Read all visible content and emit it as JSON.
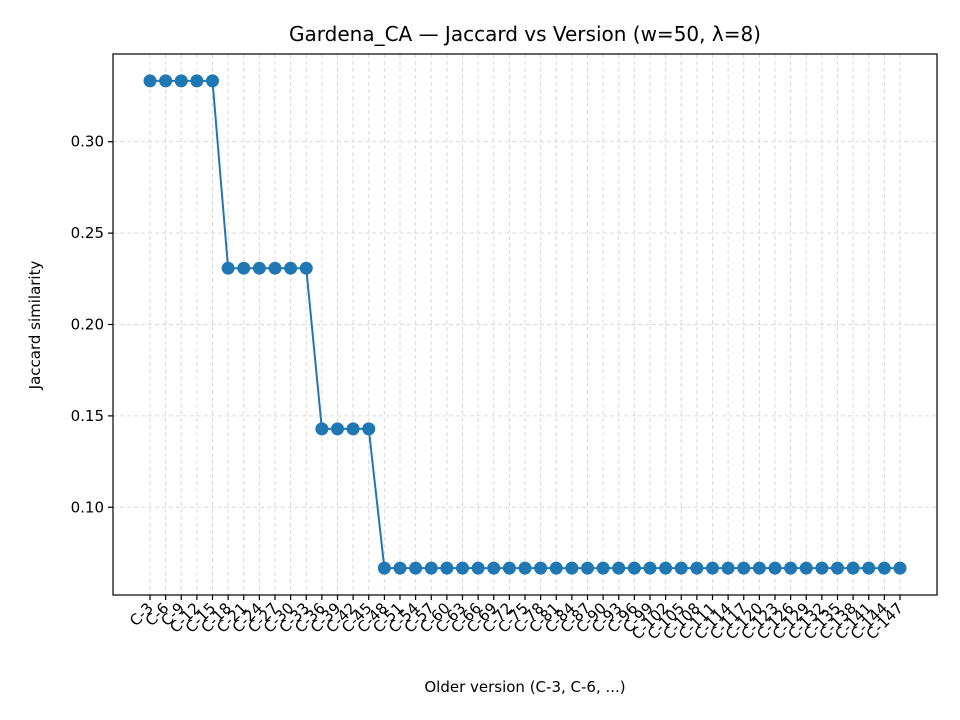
{
  "chart_data": {
    "type": "line",
    "title": "Gardena_CA — Jaccard vs Version (w=50, λ=8)",
    "xlabel": "Older version (C-3, C-6, ...)",
    "ylabel": "Jaccard similarity",
    "categories": [
      "C-3",
      "C-6",
      "C-9",
      "C-12",
      "C-15",
      "C-18",
      "C-21",
      "C-24",
      "C-27",
      "C-30",
      "C-33",
      "C-36",
      "C-39",
      "C-42",
      "C-45",
      "C-48",
      "C-51",
      "C-54",
      "C-57",
      "C-60",
      "C-63",
      "C-66",
      "C-69",
      "C-72",
      "C-75",
      "C-78",
      "C-81",
      "C-84",
      "C-87",
      "C-90",
      "C-93",
      "C-96",
      "C-99",
      "C-102",
      "C-105",
      "C-108",
      "C-111",
      "C-114",
      "C-117",
      "C-120",
      "C-123",
      "C-126",
      "C-129",
      "C-132",
      "C-135",
      "C-138",
      "C-141",
      "C-144",
      "C-147"
    ],
    "series": [
      {
        "values": [
          0.3333,
          0.3333,
          0.3333,
          0.3333,
          0.3333,
          0.2308,
          0.2308,
          0.2308,
          0.2308,
          0.2308,
          0.2308,
          0.1429,
          0.1429,
          0.1429,
          0.1429,
          0.0667,
          0.0667,
          0.0667,
          0.0667,
          0.0667,
          0.0667,
          0.0667,
          0.0667,
          0.0667,
          0.0667,
          0.0667,
          0.0667,
          0.0667,
          0.0667,
          0.0667,
          0.0667,
          0.0667,
          0.0667,
          0.0667,
          0.0667,
          0.0667,
          0.0667,
          0.0667,
          0.0667,
          0.0667,
          0.0667,
          0.0667,
          0.0667,
          0.0667,
          0.0667,
          0.0667,
          0.0667,
          0.0667,
          0.0667
        ],
        "color": "#1f77b4"
      }
    ],
    "ylim": [
      0.052,
      0.348
    ],
    "yticks": [
      0.1,
      0.15,
      0.2,
      0.25,
      0.3
    ],
    "ytick_labels": [
      "0.10",
      "0.15",
      "0.20",
      "0.25",
      "0.30"
    ],
    "grid": true,
    "marker": "circle"
  }
}
